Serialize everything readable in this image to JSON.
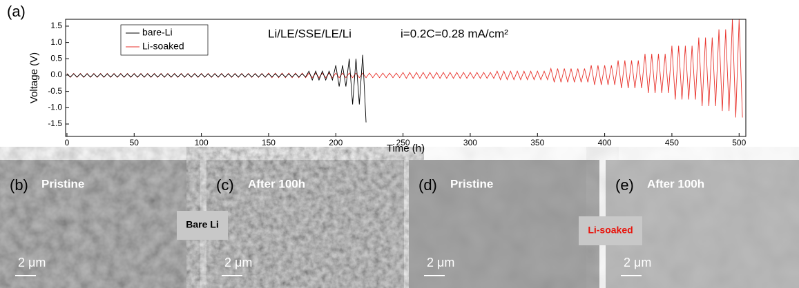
{
  "chart_data": {
    "type": "line",
    "panel_label": "(a)",
    "annotation": "Li/LE/SSE/LE/Li",
    "annotation2": "i=0.2C=0.28 mA/cm²",
    "xlabel": "Time (h)",
    "ylabel": "Voltage (V)",
    "xlim": [
      -1,
      505
    ],
    "ylim": [
      -1.88,
      1.71
    ],
    "xticks": [
      0,
      50,
      100,
      150,
      200,
      250,
      300,
      350,
      400,
      450,
      500
    ],
    "yticks": [
      -1.5,
      {
        "value": -1,
        "label": "-1.0"
      },
      -0.5,
      {
        "value": 0,
        "label": "0.0"
      },
      0.5,
      {
        "value": 1,
        "label": "1.0"
      },
      1.5
    ],
    "legend": "top-left",
    "series": [
      {
        "name": "bare-Li",
        "color": "#000000",
        "x": [
          0,
          2.5,
          5,
          7.5,
          10,
          12.5,
          15,
          17.5,
          20,
          22.5,
          25,
          27.5,
          30,
          32.5,
          35,
          37.5,
          40,
          42.5,
          45,
          47.5,
          50,
          52.5,
          55,
          57.5,
          60,
          62.5,
          65,
          67.5,
          70,
          72.5,
          75,
          77.5,
          80,
          82.5,
          85,
          87.5,
          90,
          92.5,
          95,
          97.5,
          100,
          102.5,
          105,
          107.5,
          110,
          112.5,
          115,
          117.5,
          120,
          122.5,
          125,
          127.5,
          130,
          132.5,
          135,
          137.5,
          140,
          142.5,
          145,
          147.5,
          150,
          152.5,
          155,
          157.5,
          160,
          162.5,
          165,
          167.5,
          170,
          172.5,
          175,
          177.5,
          180,
          182.5,
          185,
          187.5,
          190,
          192.5,
          195,
          197.5,
          200,
          202.5,
          205,
          207.5,
          210,
          212.5,
          215,
          217.5,
          220,
          222.5
        ],
        "values": [
          0.04,
          -0.06,
          0.04,
          -0.06,
          0.04,
          -0.06,
          0.04,
          -0.06,
          0.04,
          -0.06,
          0.04,
          -0.06,
          0.04,
          -0.06,
          0.04,
          -0.06,
          0.04,
          -0.06,
          0.04,
          -0.06,
          0.04,
          -0.06,
          0.04,
          -0.06,
          0.04,
          -0.06,
          0.04,
          -0.06,
          0.04,
          -0.06,
          0.04,
          -0.06,
          0.04,
          -0.06,
          0.04,
          -0.06,
          0.04,
          -0.06,
          0.04,
          -0.06,
          0.04,
          -0.06,
          0.04,
          -0.06,
          0.04,
          -0.06,
          0.04,
          -0.06,
          0.04,
          -0.06,
          0.04,
          -0.06,
          0.04,
          -0.06,
          0.04,
          -0.06,
          0.04,
          -0.06,
          0.04,
          -0.06,
          0.04,
          -0.06,
          0.04,
          -0.06,
          0.04,
          -0.06,
          0.04,
          -0.06,
          0.04,
          -0.06,
          0.04,
          -0.06,
          0.12,
          -0.15,
          0.12,
          -0.15,
          0.12,
          -0.15,
          0.12,
          -0.15,
          0.3,
          -0.35,
          0.3,
          -0.35,
          0.5,
          -0.9,
          0.5,
          -0.9,
          0.62,
          -1.45
        ]
      },
      {
        "name": "Li-soaked",
        "color": "#e8322b",
        "x": [
          0,
          2.5,
          5,
          7.5,
          10,
          12.5,
          15,
          17.5,
          20,
          22.5,
          25,
          27.5,
          30,
          32.5,
          35,
          37.5,
          40,
          42.5,
          45,
          47.5,
          50,
          52.5,
          55,
          57.5,
          60,
          62.5,
          65,
          67.5,
          70,
          72.5,
          75,
          77.5,
          80,
          82.5,
          85,
          87.5,
          90,
          92.5,
          95,
          97.5,
          100,
          102.5,
          105,
          107.5,
          110,
          112.5,
          115,
          117.5,
          120,
          122.5,
          125,
          127.5,
          130,
          132.5,
          135,
          137.5,
          140,
          142.5,
          145,
          147.5,
          150,
          152.5,
          155,
          157.5,
          160,
          162.5,
          165,
          167.5,
          170,
          172.5,
          175,
          177.5,
          180,
          182.5,
          185,
          187.5,
          190,
          192.5,
          195,
          197.5,
          200,
          202.5,
          205,
          207.5,
          210,
          212.5,
          215,
          217.5,
          220,
          222.5,
          225,
          227.5,
          230,
          232.5,
          235,
          237.5,
          240,
          242.5,
          245,
          247.5,
          250,
          252.5,
          255,
          257.5,
          260,
          262.5,
          265,
          267.5,
          270,
          272.5,
          275,
          277.5,
          280,
          282.5,
          285,
          287.5,
          290,
          292.5,
          295,
          297.5,
          300,
          302.5,
          305,
          307.5,
          310,
          312.5,
          315,
          317.5,
          320,
          322.5,
          325,
          327.5,
          330,
          332.5,
          335,
          337.5,
          340,
          342.5,
          345,
          347.5,
          350,
          352.5,
          355,
          357.5,
          360,
          362.5,
          365,
          367.5,
          370,
          372.5,
          375,
          377.5,
          380,
          382.5,
          385,
          387.5,
          390,
          392.5,
          395,
          397.5,
          400,
          402.5,
          405,
          407.5,
          410,
          412.5,
          415,
          417.5,
          420,
          422.5,
          425,
          427.5,
          430,
          432.5,
          435,
          437.5,
          440,
          442.5,
          445,
          447.5,
          450,
          452.5,
          455,
          457.5,
          460,
          462.5,
          465,
          467.5,
          470,
          472.5,
          475,
          477.5,
          480,
          482.5,
          485,
          487.5,
          490,
          492.5,
          495,
          497.5,
          500,
          502.5
        ],
        "values": [
          0.05,
          -0.07,
          0.05,
          -0.07,
          0.05,
          -0.07,
          0.05,
          -0.07,
          0.05,
          -0.07,
          0.05,
          -0.07,
          0.05,
          -0.07,
          0.05,
          -0.07,
          0.05,
          -0.07,
          0.05,
          -0.07,
          0.05,
          -0.07,
          0.05,
          -0.07,
          0.05,
          -0.07,
          0.05,
          -0.07,
          0.05,
          -0.07,
          0.05,
          -0.07,
          0.05,
          -0.07,
          0.05,
          -0.07,
          0.05,
          -0.07,
          0.05,
          -0.07,
          0.05,
          -0.07,
          0.05,
          -0.07,
          0.05,
          -0.07,
          0.05,
          -0.07,
          0.05,
          -0.07,
          0.05,
          -0.07,
          0.05,
          -0.07,
          0.05,
          -0.07,
          0.05,
          -0.07,
          0.05,
          -0.07,
          0.06,
          -0.08,
          0.06,
          -0.08,
          0.06,
          -0.08,
          0.06,
          -0.08,
          0.06,
          -0.08,
          0.06,
          -0.08,
          0.06,
          -0.08,
          0.06,
          -0.08,
          0.06,
          -0.08,
          0.06,
          -0.08,
          0.06,
          -0.08,
          0.06,
          -0.08,
          0.06,
          -0.08,
          0.06,
          -0.08,
          0.06,
          -0.08,
          0.06,
          -0.08,
          0.06,
          -0.08,
          0.06,
          -0.08,
          0.06,
          -0.08,
          0.06,
          -0.08,
          0.08,
          -0.1,
          0.08,
          -0.1,
          0.08,
          -0.1,
          0.08,
          -0.1,
          0.08,
          -0.1,
          0.08,
          -0.1,
          0.08,
          -0.1,
          0.08,
          -0.1,
          0.08,
          -0.1,
          0.08,
          -0.1,
          0.08,
          -0.1,
          0.08,
          -0.1,
          0.08,
          -0.1,
          0.08,
          -0.1,
          0.12,
          -0.14,
          0.12,
          -0.14,
          0.12,
          -0.14,
          0.12,
          -0.14,
          0.12,
          -0.14,
          0.12,
          -0.14,
          0.12,
          -0.14,
          0.12,
          -0.14,
          0.2,
          -0.22,
          0.2,
          -0.22,
          0.2,
          -0.22,
          0.2,
          -0.22,
          0.2,
          -0.22,
          0.2,
          -0.22,
          0.3,
          -0.3,
          0.3,
          -0.3,
          0.3,
          -0.3,
          0.3,
          -0.3,
          0.45,
          -0.4,
          0.45,
          -0.4,
          0.45,
          -0.4,
          0.45,
          -0.4,
          0.65,
          -0.55,
          0.65,
          -0.55,
          0.65,
          -0.55,
          0.65,
          -0.55,
          0.9,
          -0.75,
          0.9,
          -0.75,
          0.9,
          -0.75,
          0.9,
          -0.75,
          1.15,
          -0.95,
          1.15,
          -0.95,
          1.15,
          -0.95,
          1.4,
          -1.1,
          1.4,
          -1.1,
          1.7,
          -1.3,
          1.7,
          -1.3
        ]
      }
    ]
  },
  "panels": [
    {
      "label": "(b)",
      "caption": "Pristine",
      "scale": "2 μm"
    },
    {
      "label": "(c)",
      "caption": "After 100h",
      "scale": "2 μm"
    },
    {
      "label": "(d)",
      "caption": "Pristine",
      "scale": "2 μm"
    },
    {
      "label": "(e)",
      "caption": "After 100h",
      "scale": "2 μm"
    }
  ],
  "group_labels": [
    "Bare Li",
    "Li-soaked"
  ]
}
